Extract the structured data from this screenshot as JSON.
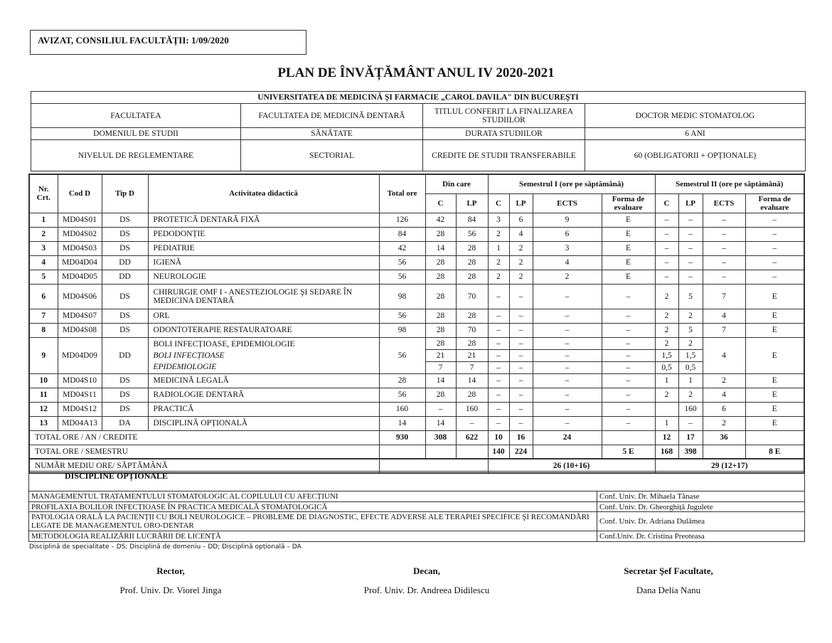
{
  "avizat": "AVIZAT, CONSILIUL FACULTĂȚII: 1/09/2020",
  "title": "PLAN DE ÎNVĂȚĂMÂNT ANUL IV 2020-2021",
  "univ": {
    "name": "UNIVERSITATEA DE MEDICINĂ ŞI FARMACIE „CAROL DAVILA\" DIN BUCUREŞTI",
    "rows": [
      [
        "FACULTATEA",
        "FACULTATEA DE MEDICINĂ DENTARĂ",
        "TITLUL CONFERIT LA FINALIZAREA STUDIILOR",
        "DOCTOR MEDIC STOMATOLOG"
      ],
      [
        "DOMENIUL DE STUDII",
        "SĂNĂTATE",
        "DURATA STUDIILOR",
        "6 ANI"
      ],
      [
        "NIVELUL DE REGLEMENTARE",
        "SECTORIAL",
        "CREDITE DE STUDII TRANSFERABILE",
        "60 (OBLIGATORII + OPȚIONALE)"
      ]
    ]
  },
  "headers": {
    "nr": "Nr. Crt.",
    "cod": "Cod D",
    "tip": "Tip D",
    "act": "Activitatea didactică",
    "total": "Total ore",
    "din": "Din care",
    "s1": "Semestrul I (ore pe săptămână)",
    "s2": "Semestrul II (ore pe săptămână)",
    "c": "C",
    "lp": "LP",
    "ects": "ECTS",
    "forma": "Forma de evaluare"
  },
  "rows": [
    [
      "1",
      "MD04S01",
      "DS",
      "PROTETICĂ DENTARĂ FIXĂ",
      "126",
      "42",
      "84",
      "3",
      "6",
      "9",
      "E",
      "–",
      "–",
      "–",
      "–"
    ],
    [
      "2",
      "MD04S02",
      "DS",
      "PEDODONȚIE",
      "84",
      "28",
      "56",
      "2",
      "4",
      "6",
      "E",
      "–",
      "–",
      "–",
      "–"
    ],
    [
      "3",
      "MD04S03",
      "DS",
      "PEDIATRIE",
      "42",
      "14",
      "28",
      "1",
      "2",
      "3",
      "E",
      "–",
      "–",
      "–",
      "–"
    ],
    [
      "4",
      "MD04D04",
      "DD",
      "IGIENĂ",
      "56",
      "28",
      "28",
      "2",
      "2",
      "4",
      "E",
      "–",
      "–",
      "–",
      "–"
    ],
    [
      "5",
      "MD04D05",
      "DD",
      "NEUROLOGIE",
      "56",
      "28",
      "28",
      "2",
      "2",
      "2",
      "E",
      "–",
      "–",
      "–",
      "–"
    ],
    [
      "6",
      "MD04S06",
      "DS",
      "CHIRURGIE OMF I - ANESTEZIOLOGIE ŞI SEDARE ÎN MEDICINA DENTARĂ",
      "98",
      "28",
      "70",
      "–",
      "–",
      "–",
      "–",
      "2",
      "5",
      "7",
      "E"
    ],
    [
      "7",
      "MD04S07",
      "DS",
      "ORL",
      "56",
      "28",
      "28",
      "–",
      "–",
      "–",
      "–",
      "2",
      "2",
      "4",
      "E"
    ],
    [
      "8",
      "MD04S08",
      "DS",
      "ODONTOTERAPIE RESTAURATOARE",
      "98",
      "28",
      "70",
      "–",
      "–",
      "–",
      "–",
      "2",
      "5",
      "7",
      "E"
    ]
  ],
  "row9": {
    "nr": "9",
    "cod": "MD04D09",
    "tip": "DD",
    "total": "56",
    "ects2": "4",
    "forma2": "E",
    "sub": [
      {
        "name": "BOLI INFECȚIOASE, EPIDEMIOLOGIE",
        "vals": [
          "28",
          "28",
          "–",
          "–",
          "–",
          "–",
          "2",
          "2"
        ]
      },
      {
        "name": "BOLI INFECȚIOASE",
        "vals": [
          "21",
          "21",
          "–",
          "–",
          "–",
          "–",
          "1,5",
          "1,5"
        ]
      },
      {
        "name": "EPIDEMIOLOGIE",
        "vals": [
          "7",
          "7",
          "–",
          "–",
          "–",
          "–",
          "0,5",
          "0,5"
        ]
      }
    ]
  },
  "rows2": [
    [
      "10",
      "MD04S10",
      "DS",
      "MEDICINĂ LEGALĂ",
      "28",
      "14",
      "14",
      "–",
      "–",
      "–",
      "–",
      "1",
      "1",
      "2",
      "E"
    ],
    [
      "11",
      "MD04S11",
      "DS",
      "RADIOLOGIE DENTARĂ",
      "56",
      "28",
      "28",
      "–",
      "–",
      "–",
      "–",
      "2",
      "2",
      "4",
      "E"
    ],
    [
      "12",
      "MD04S12",
      "DS",
      "PRACTICĂ",
      "160",
      "–",
      "160",
      "–",
      "–",
      "–",
      "–",
      "",
      "160",
      "6",
      "E"
    ],
    [
      "13",
      "MD04A13",
      "DA",
      "DISCIPLINĂ OPȚIONALĂ",
      "14",
      "14",
      "–",
      "–",
      "–",
      "–",
      "–",
      "1",
      "–",
      "2",
      "E"
    ]
  ],
  "totals": [
    {
      "label": "TOTAL ORE / AN / CREDITE",
      "vals": [
        "930",
        "308",
        "622",
        "10",
        "16",
        "24",
        "",
        "12",
        "17",
        "36",
        ""
      ]
    },
    {
      "label": "TOTAL ORE / SEMESTRU",
      "vals": [
        "",
        "",
        "",
        "140",
        "224",
        "",
        "5 E",
        "168",
        "398",
        "",
        "8 E"
      ]
    }
  ],
  "medie": {
    "label": "NUMĂR MEDIU ORE/ SĂPTĂMÂNĂ",
    "s1": "26 (10+16)",
    "s2": "29 (12+17)"
  },
  "optionale": {
    "title": "DISCIPLINE OPȚIONALE",
    "items": [
      [
        "MANAGEMENTUL TRATAMENTULUI STOMATOLOGIC AL COPILULUI CU AFECȚIUNI",
        "Conf. Univ. Dr. Mihaela Tănase"
      ],
      [
        "PROFILAXIA BOLILOR INFECȚIOASE ÎN PRACTICA MEDICALĂ STOMATOLOGICĂ",
        "Conf. Univ. Dr. Gheorghiță Jugulete"
      ],
      [
        "PATOLOGIA ORALĂ LA PACIENȚII CU BOLI NEUROLOGICE – PROBLEME DE DIAGNOSTIC, EFECTE ADVERSE ALE TERAPIEI SPECIFICE ŞI RECOMANDĂRI LEGATE DE MANAGEMENTUL ORO-DENTAR",
        "Conf. Univ. Dr. Adriana Dulămea"
      ],
      [
        "METODOLOGIA REALIZĂRII LUCRĂRII DE LICENȚĂ",
        "Conf.Univ. Dr. Cristina Preoteasa"
      ]
    ]
  },
  "legend": "Disciplină de specialitate – DS; Disciplină de domeniu – DD; Disciplină opțională – DA",
  "signatures": [
    {
      "title": "Rector,",
      "name": "Prof. Univ. Dr. Viorel Jinga"
    },
    {
      "title": "Decan,",
      "name": "Prof. Univ. Dr. Andreea Didilescu"
    },
    {
      "title": "Secretar Şef Facultate,",
      "name": "Dana Delia Nanu"
    }
  ]
}
